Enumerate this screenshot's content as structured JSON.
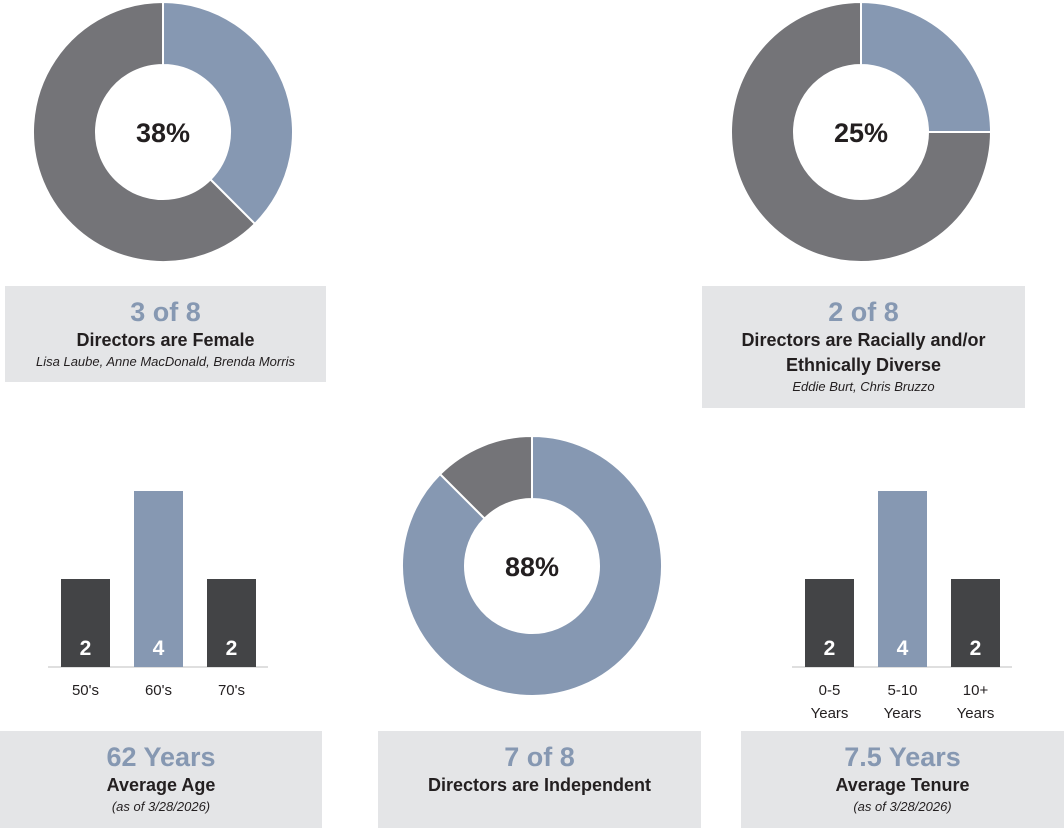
{
  "colors": {
    "accent": "#8698b2",
    "gray": "#747478",
    "dark": "#434446",
    "panel": "#e4e5e7"
  },
  "female": {
    "chart_data": {
      "type": "pie",
      "values": [
        37.5,
        62.5
      ],
      "center_label": "38%"
    },
    "count": "3 of 8",
    "title": "Directors are Female",
    "names": "Lisa Laube, Anne MacDonald, Brenda Morris"
  },
  "diverse": {
    "chart_data": {
      "type": "pie",
      "values": [
        25,
        75
      ],
      "center_label": "25%"
    },
    "count": "2 of 8",
    "title_line1": "Directors are Racially and/or",
    "title_line2": "Ethnically Diverse",
    "names": "Eddie Burt, Chris Bruzzo"
  },
  "independent": {
    "chart_data": {
      "type": "pie",
      "values": [
        87.5,
        12.5
      ],
      "center_label": "88%"
    },
    "count": "7 of 8",
    "title": "Directors are Independent"
  },
  "age": {
    "chart_data": {
      "type": "bar",
      "categories": [
        "50's",
        "60's",
        "70's"
      ],
      "values": [
        2,
        4,
        2
      ],
      "ylim": [
        0,
        4
      ]
    },
    "headline": "62 Years",
    "title": "Average Age",
    "note": "(as of 3/28/2026)"
  },
  "tenure": {
    "chart_data": {
      "type": "bar",
      "categories": [
        [
          "0-5",
          "Years"
        ],
        [
          "5-10",
          "Years"
        ],
        [
          "10+",
          "Years"
        ]
      ],
      "values": [
        2,
        4,
        2
      ],
      "ylim": [
        0,
        4
      ]
    },
    "headline": "7.5 Years",
    "title": "Average Tenure",
    "note": "(as of 3/28/2026)"
  }
}
